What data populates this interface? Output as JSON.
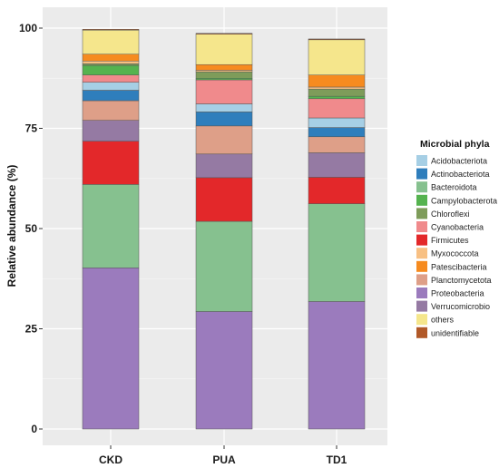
{
  "chart_data": {
    "type": "bar",
    "stacked": true,
    "title": "",
    "xlabel": "",
    "ylabel": "Relative abundance (%)",
    "ylim": [
      0,
      100
    ],
    "yticks": [
      "0",
      "25",
      "50",
      "75",
      "100"
    ],
    "grid": true,
    "legend_position": "right",
    "legend_title": "Microbial phyla",
    "categories": [
      "CKD",
      "PUA",
      "TD1"
    ],
    "series": [
      {
        "name": "Proteobacteria",
        "color": "#9b7bbd",
        "values": [
          40.2,
          29.3,
          31.8
        ]
      },
      {
        "name": "Bacteroidota",
        "color": "#86c18f",
        "values": [
          20.8,
          22.5,
          24.4
        ]
      },
      {
        "name": "Firmicutes",
        "color": "#e3282a",
        "values": [
          10.8,
          10.9,
          6.6
        ]
      },
      {
        "name": "Verrucomicrobio",
        "color": "#957aa3",
        "values": [
          5.2,
          5.9,
          6.1
        ]
      },
      {
        "name": "Planctomycetota",
        "color": "#de9f88",
        "values": [
          4.9,
          7.0,
          4.0
        ]
      },
      {
        "name": "Actinobacteriota",
        "color": "#2f7ebc",
        "values": [
          2.6,
          3.5,
          2.3
        ]
      },
      {
        "name": "Acidobacteriota",
        "color": "#a6cfe5",
        "values": [
          2.0,
          2.0,
          2.4
        ]
      },
      {
        "name": "Cyanobacteria",
        "color": "#f08a8c",
        "values": [
          1.8,
          6.0,
          4.8
        ]
      },
      {
        "name": "Campylobacterota",
        "color": "#55b34f",
        "values": [
          2.4,
          0.4,
          0.6
        ]
      },
      {
        "name": "Chloroflexi",
        "color": "#7e9c5a",
        "values": [
          0.4,
          1.6,
          1.8
        ]
      },
      {
        "name": "Myxococcota",
        "color": "#f8c083",
        "values": [
          0.7,
          0.4,
          0.5
        ]
      },
      {
        "name": "Patescibacteria",
        "color": "#f68b1f",
        "values": [
          1.7,
          1.4,
          3.0
        ]
      },
      {
        "name": "others",
        "color": "#f5e68c",
        "values": [
          6.0,
          7.6,
          8.8
        ]
      },
      {
        "name": "unidentifiable",
        "color": "#b15928",
        "values": [
          0.2,
          0.2,
          0.2
        ]
      }
    ],
    "legend_order": [
      "Acidobacteriota",
      "Actinobacteriota",
      "Bacteroidota",
      "Campylobacterota",
      "Chloroflexi",
      "Cyanobacteria",
      "Firmicutes",
      "Myxococcota",
      "Patescibacteria",
      "Planctomycetota",
      "Proteobacteria",
      "Verrucomicrobio",
      "others",
      "unidentifiable"
    ]
  }
}
